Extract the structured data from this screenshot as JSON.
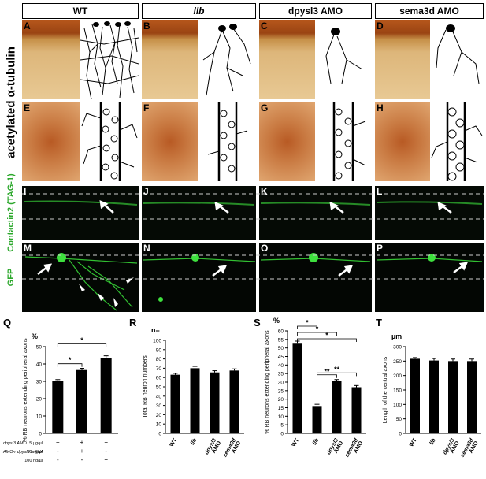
{
  "columns": [
    {
      "label": "WT",
      "italic": false
    },
    {
      "label": "llb",
      "italic": true
    },
    {
      "label": "dpysl3 AMO",
      "italic": false
    },
    {
      "label": "sema3d AMO",
      "italic": false
    }
  ],
  "row_label": "acetylated α-tubulin",
  "contactin_label": "Contactin2 (TAG-1)",
  "gfp_label": "GFP",
  "panel_letters": [
    "A",
    "B",
    "C",
    "D",
    "E",
    "F",
    "G",
    "H",
    "I",
    "J",
    "K",
    "L",
    "M",
    "N",
    "O",
    "P"
  ],
  "chart_data": [
    {
      "panel": "Q",
      "type": "bar",
      "ylabel": "% RB neurons extending peripheral axons",
      "yunit": "%",
      "ylim": [
        0,
        50
      ],
      "yticks": [
        0,
        10,
        20,
        30,
        40,
        50
      ],
      "values": [
        30,
        36.5,
        43.5
      ],
      "errors": [
        1,
        1,
        1.2
      ],
      "condition_rows": [
        {
          "label": "dpysl3 AMO",
          "dose": "5 µg/µl",
          "marks": [
            "+",
            "+",
            "+"
          ]
        },
        {
          "label": "AMO-r dpysl3 mRNA",
          "dose": "50 ng/µl",
          "marks": [
            "-",
            "+",
            "-"
          ]
        },
        {
          "label": "",
          "dose": "100 ng/µl",
          "marks": [
            "-",
            "-",
            "+"
          ]
        }
      ],
      "significance": [
        {
          "from": 0,
          "to": 1,
          "label": "*"
        },
        {
          "from": 0,
          "to": 2,
          "label": "*"
        }
      ]
    },
    {
      "panel": "R",
      "type": "bar",
      "ylabel": "Total RB neuron numbers",
      "yunit": "n=",
      "ylim": [
        0,
        100
      ],
      "yticks": [
        0,
        10,
        20,
        30,
        40,
        50,
        60,
        70,
        80,
        90,
        100
      ],
      "categories": [
        "WT",
        "llb",
        "dpysl3 AMO",
        "sema3d AMO"
      ],
      "values": [
        63,
        70,
        65.5,
        67.5
      ],
      "errors": [
        1.5,
        2,
        1.8,
        1.8
      ]
    },
    {
      "panel": "S",
      "type": "bar",
      "ylabel": "% RB neurons extending peripheral axons",
      "yunit": "%",
      "ylim": [
        0,
        60
      ],
      "yticks": [
        0,
        5,
        10,
        15,
        20,
        25,
        30,
        35,
        40,
        45,
        50,
        55,
        60
      ],
      "categories": [
        "WT",
        "llb",
        "dpysl3 AMO",
        "sema3d AMO"
      ],
      "values": [
        52.5,
        16,
        30.5,
        27
      ],
      "errors": [
        1.5,
        1,
        1,
        1
      ],
      "significance": [
        {
          "from": 0,
          "to": 1,
          "label": "*"
        },
        {
          "from": 0,
          "to": 2,
          "label": "*"
        },
        {
          "from": 0,
          "to": 3,
          "label": "*"
        },
        {
          "from": 1,
          "to": 2,
          "label": "**"
        },
        {
          "from": 1,
          "to": 3,
          "label": "**"
        }
      ]
    },
    {
      "panel": "T",
      "type": "bar",
      "ylabel": "Length of the central axons",
      "yunit": "µm",
      "ylim": [
        0,
        300
      ],
      "yticks": [
        0,
        50,
        100,
        150,
        200,
        250,
        300
      ],
      "categories": [
        "WT",
        "llb",
        "dpysl3 AMO",
        "sema3d AMO"
      ],
      "values": [
        258,
        252,
        250,
        250
      ],
      "errors": [
        4,
        7,
        7,
        7
      ]
    }
  ]
}
